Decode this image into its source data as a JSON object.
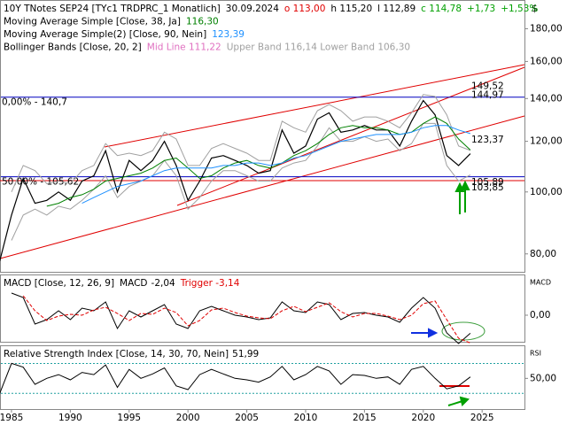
{
  "chart_data": [
    {
      "type": "line",
      "log_scale": true,
      "unit": "$",
      "title": "10Y TNotes SEP24 [TYc1 TRDPRC_1 Monatlich]",
      "header_values": [
        {
          "text": "30.09.2024",
          "color": "#000000"
        },
        {
          "text": "o 113,00",
          "color": "#e00000"
        },
        {
          "text": "h 115,20",
          "color": "#000000"
        },
        {
          "text": "l 112,89",
          "color": "#000000"
        },
        {
          "text": "c 114,78",
          "color": "#00a000"
        },
        {
          "text": "+1,73",
          "color": "#00a000"
        },
        {
          "text": "+1,53%",
          "color": "#00a000"
        }
      ],
      "legend_layout": "lines",
      "xlim": [
        1984.1,
        2028.6
      ],
      "ylim": [
        75,
        199
      ],
      "yticks": [
        {
          "value": 80,
          "label": "80,00"
        },
        {
          "value": 100,
          "label": "100,00"
        },
        {
          "value": 120,
          "label": "120,00"
        },
        {
          "value": 140,
          "label": "140,00"
        },
        {
          "value": 160,
          "label": "160,00"
        },
        {
          "value": 180,
          "label": "180,00"
        }
      ],
      "x": [
        1984,
        1985,
        1986,
        1987,
        1988,
        1989,
        1990,
        1991,
        1992,
        1993,
        1994,
        1995,
        1996,
        1997,
        1998,
        1999,
        2000,
        2001,
        2002,
        2003,
        2004,
        2005,
        2006,
        2007,
        2008,
        2009,
        2010,
        2011,
        2012,
        2013,
        2014,
        2015,
        2016,
        2017,
        2018,
        2019,
        2020,
        2021,
        2022,
        2023,
        2024
      ],
      "series": [
        {
          "color": "#000000",
          "values": [
            78,
            92,
            105,
            96,
            97,
            100,
            97,
            104,
            106,
            116,
            100,
            112,
            108,
            112,
            120,
            110,
            97,
            104,
            113,
            114,
            112,
            110,
            107,
            108,
            125,
            115,
            118,
            130,
            133,
            124,
            125,
            127,
            125,
            125,
            118,
            129,
            139,
            132,
            114,
            110,
            114.78
          ]
        },
        {
          "name": "Moving Average Simple [Close, 38, Ja]",
          "last_label": "116,30",
          "color": "#008000",
          "values": [
            null,
            null,
            null,
            null,
            95,
            96,
            98,
            99,
            101,
            104,
            105,
            106,
            107,
            109,
            112,
            113,
            109,
            105,
            106,
            109,
            111,
            112,
            110,
            109,
            111,
            114,
            116,
            119,
            123,
            126,
            127,
            126,
            126,
            125,
            123,
            124,
            128,
            131,
            128,
            121,
            116.3
          ]
        },
        {
          "name": "Moving Average Simple(2) [Close, 90, Nein]",
          "last_label": "123,39",
          "color": "#1e90ff",
          "values": [
            null,
            null,
            null,
            null,
            null,
            null,
            null,
            96,
            98,
            100,
            102,
            103,
            104,
            106,
            108,
            109,
            109,
            109,
            109,
            110,
            110,
            111,
            111,
            110,
            111,
            113,
            114,
            116,
            118,
            120,
            121,
            122,
            123,
            123,
            123,
            124,
            126,
            127,
            127,
            125,
            123.39
          ]
        }
      ],
      "bollinger": {
        "name": "Bollinger Bands [Close, 20, 2]",
        "mid_label": "Mid Line 111,22",
        "mid_color": "#e070c0",
        "band_label": "Upper Band 116,14 Lower Band 106,30",
        "color": "#a0a0a0",
        "upper": [
          null,
          100,
          110,
          108,
          103,
          104,
          103,
          108,
          110,
          119,
          114,
          115,
          114,
          116,
          124,
          121,
          110,
          110,
          117,
          119,
          117,
          115,
          112,
          112,
          129,
          126,
          124,
          134,
          137,
          134,
          129,
          131,
          131,
          129,
          126,
          133,
          142,
          141,
          132,
          118,
          116.14
        ],
        "lower": [
          null,
          84,
          92,
          94,
          92,
          95,
          94,
          97,
          101,
          106,
          98,
          102,
          104,
          106,
          112,
          106,
          94,
          98,
          104,
          108,
          108,
          106,
          104,
          104,
          109,
          111,
          112,
          118,
          126,
          120,
          120,
          122,
          120,
          121,
          116,
          119,
          128,
          128,
          110,
          104,
          106.3
        ]
      },
      "levels": [
        {
          "value": 140.7,
          "label": "0,00% - 140,7",
          "color": "#0000c0"
        },
        {
          "value": 105.62,
          "label": "50,00% - 105,62",
          "color": "#0000c0"
        }
      ],
      "right_labels": [
        {
          "value": 149.52,
          "label": "149,52"
        },
        {
          "value": 144.97,
          "label": "144,97"
        },
        {
          "value": 123.37,
          "label": "123,37"
        },
        {
          "value": 105.89,
          "label": "105,89"
        },
        {
          "value": 103.85,
          "label": "103,85"
        }
      ],
      "right_label_color": "#e00000"
    },
    {
      "type": "line",
      "title": "MACD [Close, 12, 26, 9]",
      "legend_layout": "inline",
      "axis_label": "MACD",
      "xlim": [
        1984.1,
        2028.6
      ],
      "ylim": [
        -3,
        4.5
      ],
      "yticks": [
        {
          "value": 0,
          "label": "0,00"
        }
      ],
      "x": [
        1984,
        1985,
        1986,
        1987,
        1988,
        1989,
        1990,
        1991,
        1992,
        1993,
        1994,
        1995,
        1996,
        1997,
        1998,
        1999,
        2000,
        2001,
        2002,
        2003,
        2004,
        2005,
        2006,
        2007,
        2008,
        2009,
        2010,
        2011,
        2012,
        2013,
        2014,
        2015,
        2016,
        2017,
        2018,
        2019,
        2020,
        2021,
        2022,
        2023,
        2024
      ],
      "series": [
        {
          "name": "MACD",
          "last_label": "-2,04",
          "color": "#000000",
          "values": [
            null,
            2.5,
            2.0,
            -1.0,
            -0.5,
            0.5,
            -0.5,
            0.8,
            0.5,
            1.5,
            -1.5,
            0.5,
            -0.2,
            0.5,
            1.2,
            -1.0,
            -1.5,
            0.5,
            1.0,
            0.5,
            0.0,
            -0.2,
            -0.5,
            -0.3,
            1.5,
            0.5,
            0.3,
            1.5,
            1.2,
            -0.5,
            0.2,
            0.3,
            0.0,
            -0.2,
            -0.8,
            0.8,
            2.0,
            0.8,
            -2.0,
            -3.2,
            -2.04
          ]
        },
        {
          "name": "Trigger",
          "last_label": "-3,14",
          "color": "#e00000",
          "dashed": true,
          "values": [
            null,
            null,
            2.2,
            0.5,
            -0.6,
            -0.1,
            0.1,
            0.0,
            0.6,
            0.9,
            0.2,
            -0.6,
            0.2,
            0.1,
            0.8,
            0.3,
            -1.2,
            -0.6,
            0.6,
            0.8,
            0.3,
            -0.1,
            -0.3,
            -0.4,
            0.5,
            1.0,
            0.4,
            0.9,
            1.4,
            0.4,
            -0.2,
            0.2,
            0.2,
            -0.1,
            -0.5,
            0.0,
            1.3,
            1.6,
            -0.5,
            -2.6,
            -3.14
          ]
        }
      ]
    },
    {
      "type": "line",
      "title": "Relative Strength Index [Close, 14, 30, 70, Nein]",
      "legend_layout": "inline",
      "axis_label": "RSI",
      "xlim": [
        1984.1,
        2028.6
      ],
      "ylim": [
        9,
        93
      ],
      "yticks": [
        {
          "value": 50,
          "label": "50,00"
        }
      ],
      "xticks": [
        1985,
        1990,
        1995,
        2000,
        2005,
        2010,
        2015,
        2020,
        2025
      ],
      "levels": [
        {
          "value": 70,
          "color": "#20a0a0"
        },
        {
          "value": 30,
          "color": "#20a0a0"
        }
      ],
      "x": [
        1984,
        1985,
        1986,
        1987,
        1988,
        1989,
        1990,
        1991,
        1992,
        1993,
        1994,
        1995,
        1996,
        1997,
        1998,
        1999,
        2000,
        2001,
        2002,
        2003,
        2004,
        2005,
        2006,
        2007,
        2008,
        2009,
        2010,
        2011,
        2012,
        2013,
        2014,
        2015,
        2016,
        2017,
        2018,
        2019,
        2020,
        2021,
        2022,
        2023,
        2024
      ],
      "series": [
        {
          "last_label": "51,99",
          "color": "#000000",
          "values": [
            30,
            70,
            65,
            42,
            50,
            55,
            48,
            58,
            55,
            68,
            38,
            62,
            50,
            56,
            64,
            40,
            35,
            55,
            62,
            56,
            50,
            48,
            45,
            52,
            66,
            48,
            55,
            66,
            60,
            42,
            55,
            54,
            50,
            52,
            42,
            62,
            66,
            50,
            36,
            40,
            51.99
          ]
        }
      ]
    }
  ]
}
